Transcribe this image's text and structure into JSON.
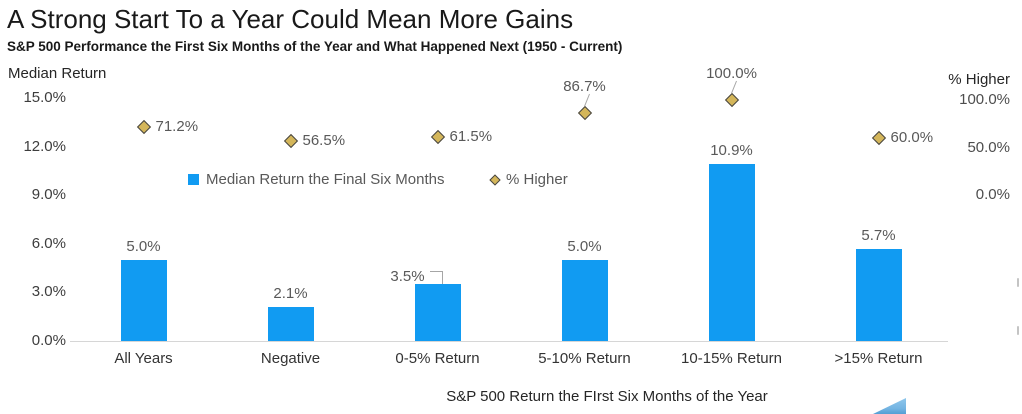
{
  "chart_data": {
    "type": "bar",
    "title": "A Strong Start To a Year Could Mean More Gains",
    "subtitle": "S&P 500 Performance the First Six Months of the Year and What Happened Next (1950 - Current)",
    "xlabel": "S&P 500 Return the FIrst Six Months of the Year",
    "categories": [
      "All Years",
      "Negative",
      "0-5% Return",
      "5-10% Return",
      "10-15% Return",
      ">15% Return"
    ],
    "series": [
      {
        "name": "Median Return the Final Six Months",
        "type": "bar",
        "axis": "left",
        "color": "#119bf2",
        "values": [
          5.0,
          2.1,
          3.5,
          5.0,
          10.9,
          5.7
        ],
        "labels": [
          "5.0%",
          "2.1%",
          "3.5%",
          "5.0%",
          "10.9%",
          "5.7%"
        ]
      },
      {
        "name": "% Higher",
        "type": "scatter",
        "marker": "diamond",
        "axis": "right",
        "color": "#d4b65a",
        "values": [
          71.2,
          56.5,
          61.5,
          86.7,
          100.0,
          60.0
        ],
        "labels": [
          "71.2%",
          "56.5%",
          "61.5%",
          "86.7%",
          "100.0%",
          "60.0%"
        ],
        "label_pos": [
          "right",
          "right",
          "right",
          "above",
          "above",
          "right"
        ]
      }
    ],
    "left_axis": {
      "title": "Median Return",
      "min": 0,
      "max": 15,
      "ticks": [
        {
          "value": 0,
          "label": "0.0%"
        },
        {
          "value": 3,
          "label": "3.0%"
        },
        {
          "value": 6,
          "label": "6.0%"
        },
        {
          "value": 9,
          "label": "9.0%"
        },
        {
          "value": 12,
          "label": "12.0%"
        },
        {
          "value": 15,
          "label": "15.0%"
        }
      ]
    },
    "right_axis": {
      "title": "% Higher",
      "min": 0,
      "max": 100,
      "ticks": [
        {
          "value": 0,
          "label": "0.0%"
        },
        {
          "value": 50,
          "label": "50.0%"
        },
        {
          "value": 100,
          "label": "100.0%"
        }
      ]
    },
    "legend": [
      "Median Return the Final Six Months",
      "% Higher"
    ],
    "legend_position": "inside-top-left",
    "grid": false,
    "colors": {
      "bar": "#119bf2",
      "diamond_fill": "#d4b65a",
      "diamond_border": "#454545",
      "axis_line": "#d6d6d6",
      "label_gray": "#595959",
      "text_dark": "#191919"
    }
  }
}
